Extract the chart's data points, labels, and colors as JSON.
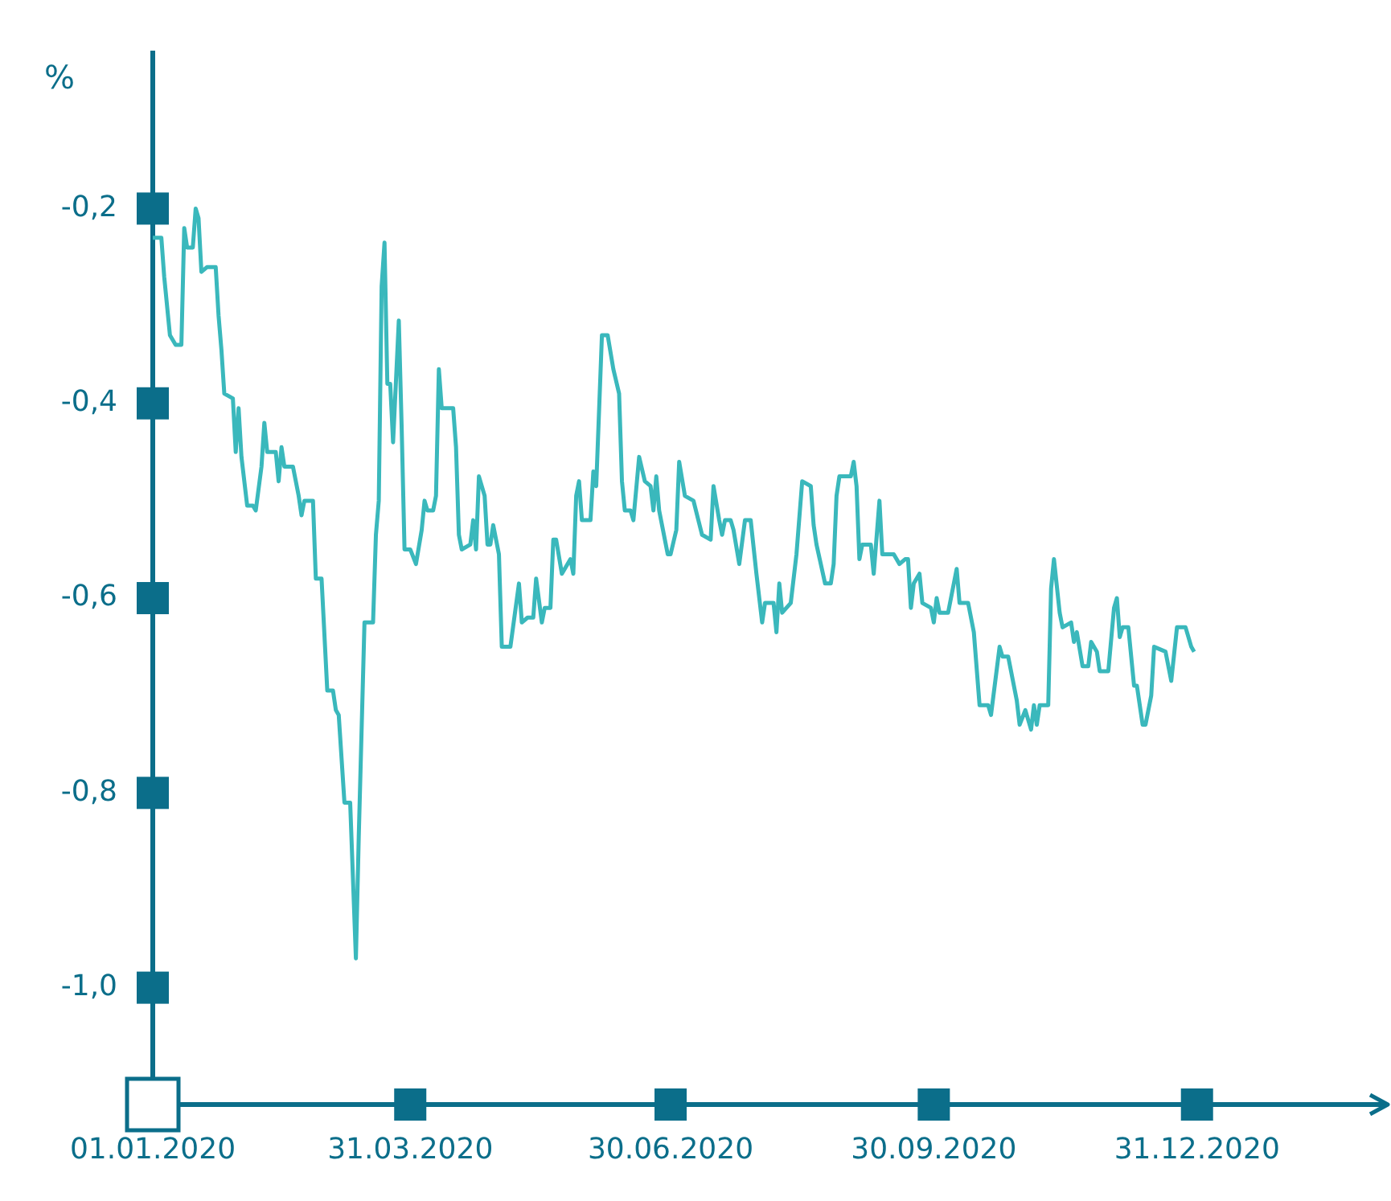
{
  "chart_data": {
    "type": "line",
    "ylabel": "%",
    "color": "#3ab8bc",
    "xlim": [
      "2020-01-01",
      "2021-03-06"
    ],
    "ylim": [
      -1.12,
      -0.04
    ],
    "xticks": [
      {
        "value": "2020-01-01",
        "label": "01.01.2020"
      },
      {
        "value": "2020-03-31",
        "label": "31.03.2020"
      },
      {
        "value": "2020-06-30",
        "label": "30.06.2020"
      },
      {
        "value": "2020-09-30",
        "label": "30.09.2020"
      },
      {
        "value": "2020-12-31",
        "label": "31.12.2020"
      }
    ],
    "yticks": [
      {
        "value": -0.2,
        "label": "-0,2"
      },
      {
        "value": -0.4,
        "label": "-0,4"
      },
      {
        "value": -0.6,
        "label": "-0,6"
      },
      {
        "value": -0.8,
        "label": "-0,8"
      },
      {
        "value": -1.0,
        "label": "-1,0"
      }
    ],
    "x": [
      "2020-01-01",
      "2020-01-04",
      "2020-01-05",
      "2020-01-07",
      "2020-01-09",
      "2020-01-11",
      "2020-01-12",
      "2020-01-13",
      "2020-01-15",
      "2020-01-16",
      "2020-01-17",
      "2020-01-18",
      "2020-01-20",
      "2020-01-23",
      "2020-01-24",
      "2020-01-25",
      "2020-01-26",
      "2020-01-29",
      "2020-01-30",
      "2020-01-31",
      "2020-02-01",
      "2020-02-03",
      "2020-02-05",
      "2020-02-06",
      "2020-02-08",
      "2020-02-09",
      "2020-02-10",
      "2020-02-13",
      "2020-02-14",
      "2020-02-15",
      "2020-02-16",
      "2020-02-19",
      "2020-02-21",
      "2020-02-22",
      "2020-02-23",
      "2020-02-26",
      "2020-02-27",
      "2020-02-29",
      "2020-03-02",
      "2020-03-04",
      "2020-03-05",
      "2020-03-06",
      "2020-03-08",
      "2020-03-10",
      "2020-03-12",
      "2020-03-13",
      "2020-03-15",
      "2020-03-18",
      "2020-03-19",
      "2020-03-20",
      "2020-03-21",
      "2020-03-22",
      "2020-03-23",
      "2020-03-24",
      "2020-03-25",
      "2020-03-27",
      "2020-03-28",
      "2020-03-29",
      "2020-03-31",
      "2020-04-02",
      "2020-04-04",
      "2020-04-05",
      "2020-04-06",
      "2020-04-08",
      "2020-04-09",
      "2020-04-10",
      "2020-04-11",
      "2020-04-15",
      "2020-04-16",
      "2020-04-17",
      "2020-04-18",
      "2020-04-21",
      "2020-04-22",
      "2020-04-23",
      "2020-04-24",
      "2020-04-26",
      "2020-04-27",
      "2020-04-28",
      "2020-04-29",
      "2020-05-01",
      "2020-05-02",
      "2020-05-05",
      "2020-05-08",
      "2020-05-09",
      "2020-05-11",
      "2020-05-13",
      "2020-05-14",
      "2020-05-16",
      "2020-05-17",
      "2020-05-19",
      "2020-05-20",
      "2020-05-21",
      "2020-05-23",
      "2020-05-26",
      "2020-05-27",
      "2020-05-28",
      "2020-05-29",
      "2020-05-30",
      "2020-06-02",
      "2020-06-03",
      "2020-06-04",
      "2020-06-06",
      "2020-06-08",
      "2020-06-10",
      "2020-06-12",
      "2020-06-13",
      "2020-06-14",
      "2020-06-16",
      "2020-06-17",
      "2020-06-19",
      "2020-06-21",
      "2020-06-23",
      "2020-06-24",
      "2020-06-25",
      "2020-06-26",
      "2020-06-29",
      "2020-06-30",
      "2020-07-02",
      "2020-07-03",
      "2020-07-05",
      "2020-07-08",
      "2020-07-11",
      "2020-07-14",
      "2020-07-15",
      "2020-07-17",
      "2020-07-18",
      "2020-07-19",
      "2020-07-21",
      "2020-07-22",
      "2020-07-24",
      "2020-07-26",
      "2020-07-28",
      "2020-07-30",
      "2020-08-01",
      "2020-08-02",
      "2020-08-05",
      "2020-08-06",
      "2020-08-07",
      "2020-08-08",
      "2020-08-11",
      "2020-08-13",
      "2020-08-15",
      "2020-08-18",
      "2020-08-19",
      "2020-08-20",
      "2020-08-23",
      "2020-08-25",
      "2020-08-26",
      "2020-08-27",
      "2020-08-28",
      "2020-09-01",
      "2020-09-02",
      "2020-09-03",
      "2020-09-04",
      "2020-09-05",
      "2020-09-08",
      "2020-09-09",
      "2020-09-11",
      "2020-09-12",
      "2020-09-16",
      "2020-09-18",
      "2020-09-20",
      "2020-09-21",
      "2020-09-22",
      "2020-09-23",
      "2020-09-25",
      "2020-09-26",
      "2020-09-29",
      "2020-09-30",
      "2020-10-01",
      "2020-10-02",
      "2020-10-05",
      "2020-10-07",
      "2020-10-08",
      "2020-10-09",
      "2020-10-12",
      "2020-10-14",
      "2020-10-16",
      "2020-10-19",
      "2020-10-20",
      "2020-10-23",
      "2020-10-24",
      "2020-10-26",
      "2020-10-29",
      "2020-10-30",
      "2020-11-01",
      "2020-11-03",
      "2020-11-04",
      "2020-11-05",
      "2020-11-06",
      "2020-11-09",
      "2020-11-10",
      "2020-11-11",
      "2020-11-13",
      "2020-11-14",
      "2020-11-17",
      "2020-11-18",
      "2020-11-19",
      "2020-11-21",
      "2020-11-23",
      "2020-11-24",
      "2020-11-26",
      "2020-11-27",
      "2020-11-30",
      "2020-12-02",
      "2020-12-03",
      "2020-12-04",
      "2020-12-05",
      "2020-12-07",
      "2020-12-09",
      "2020-12-10",
      "2020-12-12",
      "2020-12-13",
      "2020-12-15",
      "2020-12-16",
      "2020-12-20",
      "2020-12-22",
      "2020-12-24",
      "2020-12-27",
      "2020-12-29",
      "2020-12-30"
    ],
    "values": [
      -0.23,
      -0.23,
      -0.27,
      -0.33,
      -0.34,
      -0.34,
      -0.22,
      -0.24,
      -0.24,
      -0.2,
      -0.21,
      -0.265,
      -0.26,
      -0.26,
      -0.31,
      -0.345,
      -0.39,
      -0.395,
      -0.45,
      -0.405,
      -0.455,
      -0.505,
      -0.505,
      -0.51,
      -0.465,
      -0.42,
      -0.45,
      -0.45,
      -0.48,
      -0.445,
      -0.465,
      -0.465,
      -0.495,
      -0.515,
      -0.5,
      -0.5,
      -0.58,
      -0.58,
      -0.695,
      -0.695,
      -0.715,
      -0.72,
      -0.81,
      -0.81,
      -0.97,
      -0.845,
      -0.625,
      -0.625,
      -0.535,
      -0.5,
      -0.28,
      -0.235,
      -0.38,
      -0.38,
      -0.44,
      -0.315,
      -0.425,
      -0.55,
      -0.55,
      -0.565,
      -0.53,
      -0.5,
      -0.51,
      -0.51,
      -0.495,
      -0.365,
      -0.405,
      -0.405,
      -0.445,
      -0.535,
      -0.55,
      -0.545,
      -0.52,
      -0.55,
      -0.475,
      -0.495,
      -0.545,
      -0.545,
      -0.525,
      -0.555,
      -0.65,
      -0.65,
      -0.585,
      -0.625,
      -0.62,
      -0.62,
      -0.58,
      -0.625,
      -0.61,
      -0.61,
      -0.54,
      -0.54,
      -0.575,
      -0.56,
      -0.575,
      -0.495,
      -0.48,
      -0.52,
      -0.52,
      -0.47,
      -0.485,
      -0.33,
      -0.33,
      -0.365,
      -0.39,
      -0.48,
      -0.51,
      -0.51,
      -0.52,
      -0.455,
      -0.48,
      -0.485,
      -0.51,
      -0.475,
      -0.51,
      -0.555,
      -0.555,
      -0.53,
      -0.46,
      -0.495,
      -0.5,
      -0.535,
      -0.54,
      -0.485,
      -0.52,
      -0.535,
      -0.52,
      -0.52,
      -0.53,
      -0.565,
      -0.52,
      -0.52,
      -0.575,
      -0.625,
      -0.605,
      -0.605,
      -0.635,
      -0.585,
      -0.615,
      -0.605,
      -0.555,
      -0.48,
      -0.485,
      -0.525,
      -0.545,
      -0.585,
      -0.585,
      -0.565,
      -0.495,
      -0.475,
      -0.475,
      -0.46,
      -0.485,
      -0.56,
      -0.545,
      -0.545,
      -0.575,
      -0.5,
      -0.555,
      -0.555,
      -0.565,
      -0.56,
      -0.56,
      -0.61,
      -0.585,
      -0.575,
      -0.605,
      -0.61,
      -0.625,
      -0.6,
      -0.615,
      -0.615,
      -0.585,
      -0.57,
      -0.605,
      -0.605,
      -0.635,
      -0.71,
      -0.71,
      -0.72,
      -0.65,
      -0.66,
      -0.66,
      -0.705,
      -0.73,
      -0.715,
      -0.735,
      -0.71,
      -0.73,
      -0.71,
      -0.71,
      -0.59,
      -0.56,
      -0.615,
      -0.63,
      -0.625,
      -0.645,
      -0.635,
      -0.67,
      -0.67,
      -0.645,
      -0.655,
      -0.675,
      -0.675,
      -0.61,
      -0.6,
      -0.64,
      -0.63,
      -0.63,
      -0.69,
      -0.69,
      -0.73,
      -0.73,
      -0.7,
      -0.65,
      -0.655,
      -0.685,
      -0.63,
      -0.63,
      -0.65,
      -0.655
    ]
  }
}
